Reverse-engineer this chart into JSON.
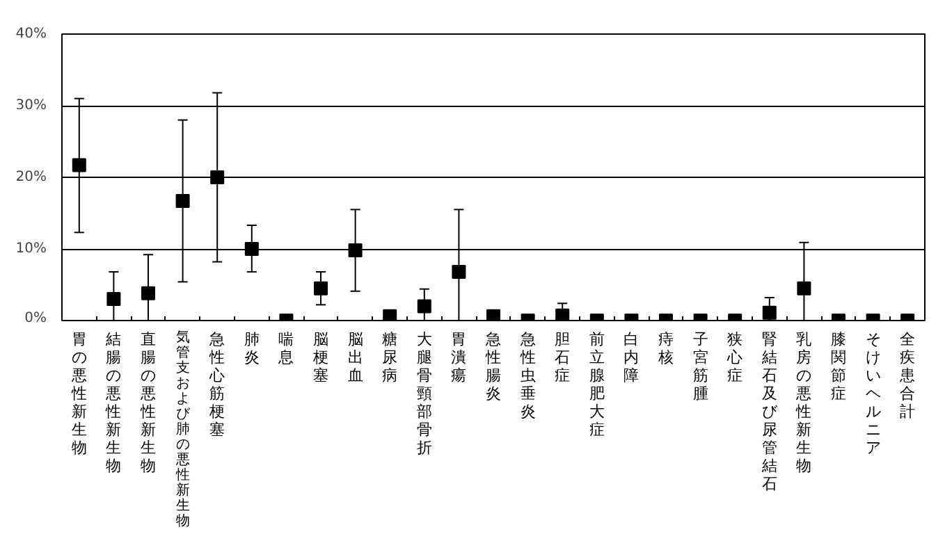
{
  "chart_data": {
    "type": "scatter",
    "marker": "square",
    "grid": "y",
    "categories": [
      "胃の悪性新生物",
      "結腸の悪性新生物",
      "直腸の悪性新生物",
      "気管支および肺の悪性新生物",
      "急性心筋梗塞",
      "肺炎",
      "喘息",
      "脳梗塞",
      "脳出血",
      "糖尿病",
      "大腿骨頸部骨折",
      "胃潰瘍",
      "急性腸炎",
      "急性虫垂炎",
      "胆石症",
      "前立腺肥大症",
      "白内障",
      "痔核",
      "子宮筋腫",
      "狭心症",
      "腎結石及び尿管結石",
      "乳房の悪性新生物",
      "膝関節症",
      "そけいヘルニア",
      "全疾患合計"
    ],
    "series": [
      {
        "color": "#000000",
        "values": [
          21.7,
          3.0,
          3.8,
          16.7,
          20.0,
          10.0,
          0,
          4.5,
          9.8,
          0.6,
          2.0,
          6.8,
          0.6,
          0,
          0.7,
          0,
          0,
          0,
          0,
          0,
          1.1,
          4.5,
          0,
          0,
          0
        ],
        "errors": [
          [
            12.3,
            31.0
          ],
          [
            0,
            6.8
          ],
          [
            0,
            9.2
          ],
          [
            5.4,
            28.0
          ],
          [
            8.2,
            31.8
          ],
          [
            6.8,
            13.3
          ],
          null,
          [
            2.2,
            6.8
          ],
          [
            4.1,
            15.5
          ],
          [
            0,
            1.2
          ],
          [
            0,
            4.4
          ],
          [
            0,
            15.5
          ],
          [
            0,
            1.4
          ],
          null,
          [
            0,
            2.4
          ],
          null,
          null,
          null,
          null,
          null,
          [
            0,
            3.2
          ],
          [
            0,
            10.9
          ],
          null,
          null,
          null
        ]
      }
    ],
    "ylim": [
      0,
      40
    ],
    "yticks": [
      {
        "value": 0,
        "label": "0%"
      },
      {
        "value": 10,
        "label": "10%"
      },
      {
        "value": 20,
        "label": "20%"
      },
      {
        "value": 30,
        "label": "30%"
      },
      {
        "value": 40,
        "label": "40%"
      }
    ]
  }
}
